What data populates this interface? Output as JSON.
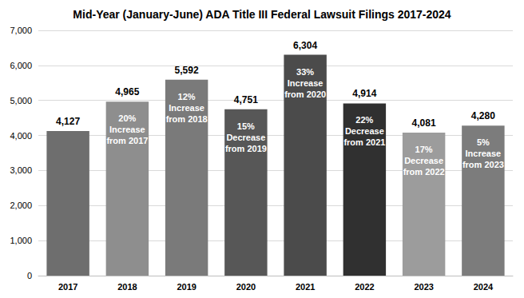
{
  "chart_data": {
    "type": "bar",
    "title": "Mid-Year (January-June) ADA Title III Federal Lawsuit Filings 2017-2024",
    "categories": [
      "2017",
      "2018",
      "2019",
      "2020",
      "2021",
      "2022",
      "2023",
      "2024"
    ],
    "values": [
      4127,
      4965,
      5592,
      4751,
      6304,
      4914,
      4081,
      4280
    ],
    "value_labels": [
      "4,127",
      "4,965",
      "5,592",
      "4,751",
      "6,304",
      "4,914",
      "4,081",
      "4,280"
    ],
    "annotations": [
      null,
      "20%\nIncrease\nfrom 2017",
      "12%\nIncrease\nfrom 2018",
      "15%\nDecrease\nfrom 2019",
      "33%\nIncrease\nfrom 2020",
      "22%\nDecrease\nfrom 2021",
      "17%\nDecrease\nfrom 2022",
      "5%\nIncrease\nfrom 2023"
    ],
    "colors": [
      "#6e6e6e",
      "#8e8e8e",
      "#7a7a7a",
      "#575757",
      "#4b4b4b",
      "#303030",
      "#9c9c9c",
      "#7c7c7c"
    ],
    "ylim": [
      0,
      7000
    ],
    "yticks": [
      0,
      {
        "value": 1000,
        "label": "1,000"
      },
      {
        "value": 2000,
        "label": "2,000"
      },
      {
        "value": 3000,
        "label": "3,000"
      },
      {
        "value": 4000,
        "label": "4,000"
      },
      {
        "value": 5000,
        "label": "5,000"
      },
      {
        "value": 6000,
        "label": "6,000"
      },
      {
        "value": 7000,
        "label": "7,000"
      }
    ],
    "grid": true,
    "data_labels": true
  }
}
